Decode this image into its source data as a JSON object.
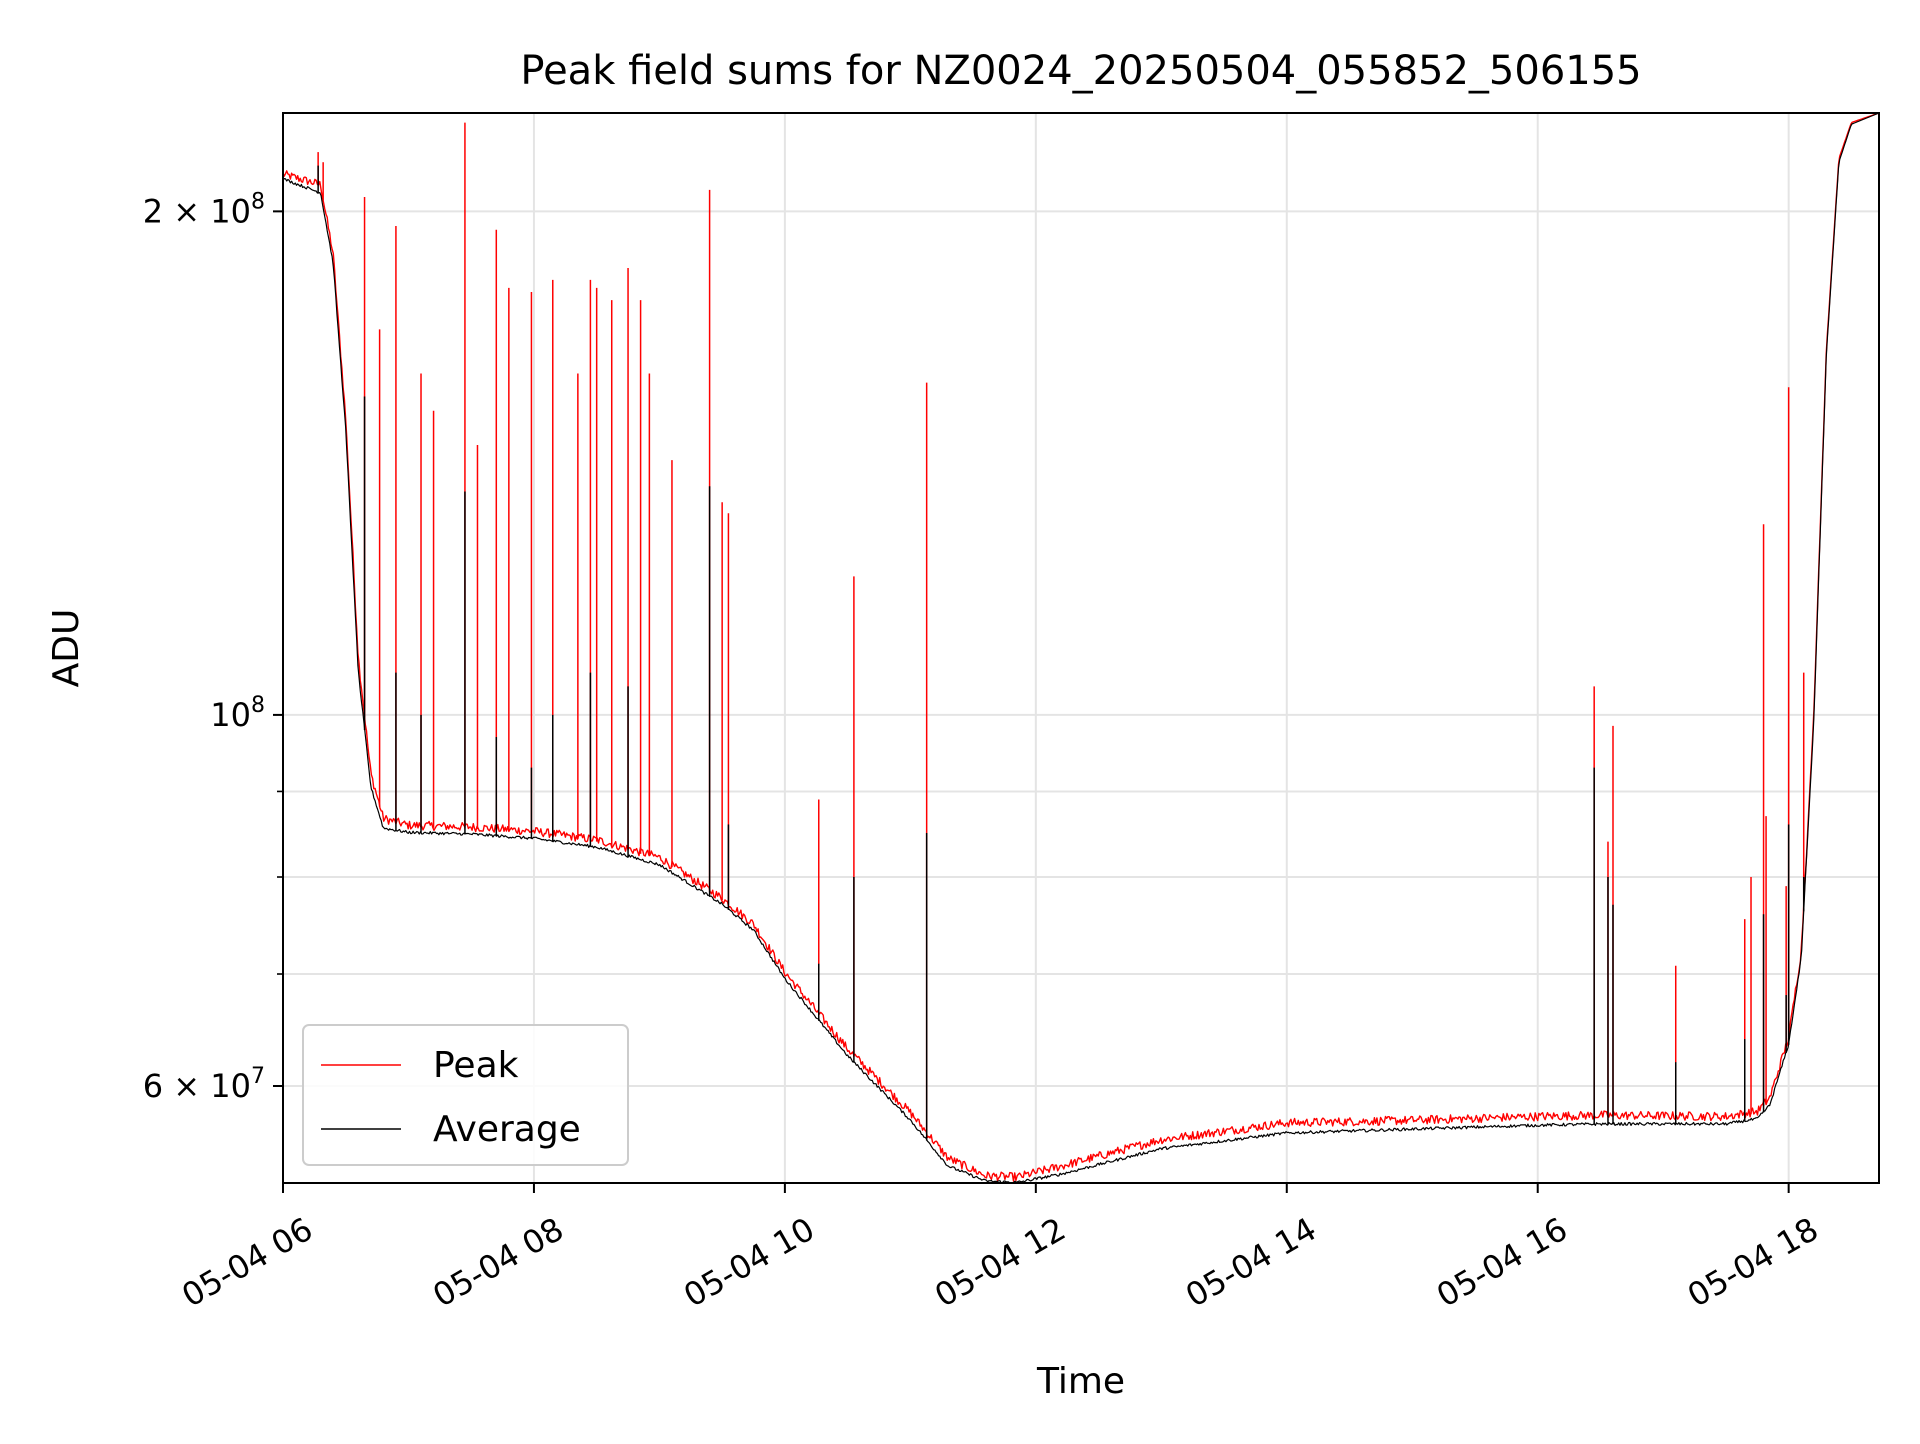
{
  "chart_data": {
    "type": "line",
    "title": "Peak field sums for NZ0024_20250504_055852_506155",
    "xlabel": "Time",
    "ylabel": "ADU",
    "x_unit": "hours (time of day, 2025-05-04)",
    "xlim": [
      6.0,
      18.72
    ],
    "ylim": [
      52500000,
      229000000
    ],
    "yscale": "log",
    "grid": true,
    "legend_position": "lower-left",
    "x_ticks": [
      {
        "value": 6,
        "label": "05-04 06"
      },
      {
        "value": 8,
        "label": "05-04 08"
      },
      {
        "value": 10,
        "label": "05-04 10"
      },
      {
        "value": 12,
        "label": "05-04 12"
      },
      {
        "value": 14,
        "label": "05-04 14"
      },
      {
        "value": 16,
        "label": "05-04 16"
      },
      {
        "value": 18,
        "label": "05-04 18"
      }
    ],
    "y_ticks_major": [
      {
        "value": 60000000,
        "mantissa": "6",
        "exponent": "7"
      },
      {
        "value": 100000000,
        "mantissa": "",
        "exponent": "8"
      },
      {
        "value": 200000000,
        "mantissa": "2",
        "exponent": "8"
      }
    ],
    "y_ticks_minor": [
      70000000,
      80000000,
      90000000
    ],
    "series": [
      {
        "name": "Peak",
        "color": "#ff0000",
        "baseline": [
          [
            6.0,
            210000000
          ],
          [
            6.3,
            207000000
          ],
          [
            6.4,
            188000000
          ],
          [
            6.5,
            150000000
          ],
          [
            6.6,
            108000000
          ],
          [
            6.7,
            92000000
          ],
          [
            6.8,
            86500000
          ],
          [
            7.0,
            85700000
          ],
          [
            7.5,
            85500000
          ],
          [
            8.0,
            85000000
          ],
          [
            8.5,
            84000000
          ],
          [
            9.0,
            82000000
          ],
          [
            9.5,
            77500000
          ],
          [
            9.75,
            74800000
          ],
          [
            10.0,
            70000000
          ],
          [
            10.5,
            63000000
          ],
          [
            11.0,
            57700000
          ],
          [
            11.3,
            54200000
          ],
          [
            11.6,
            52900000
          ],
          [
            11.85,
            52800000
          ],
          [
            12.2,
            53600000
          ],
          [
            13.0,
            55600000
          ],
          [
            14.0,
            56900000
          ],
          [
            15.0,
            57100000
          ],
          [
            16.0,
            57400000
          ],
          [
            16.5,
            57500000
          ],
          [
            17.5,
            57400000
          ],
          [
            17.75,
            57800000
          ],
          [
            17.85,
            58900000
          ],
          [
            18.0,
            64000000
          ],
          [
            18.1,
            72000000
          ],
          [
            18.2,
            100000000
          ],
          [
            18.3,
            165000000
          ],
          [
            18.4,
            215000000
          ],
          [
            18.5,
            226000000
          ],
          [
            18.72,
            229000000
          ]
        ],
        "spikes": [
          [
            6.28,
            217000000
          ],
          [
            6.32,
            214000000
          ],
          [
            6.65,
            204000000
          ],
          [
            6.9,
            196000000
          ],
          [
            6.77,
            170000000
          ],
          [
            7.1,
            160000000
          ],
          [
            7.2,
            152000000
          ],
          [
            7.45,
            226000000
          ],
          [
            7.55,
            145000000
          ],
          [
            7.7,
            195000000
          ],
          [
            7.8,
            180000000
          ],
          [
            7.98,
            179000000
          ],
          [
            8.15,
            182000000
          ],
          [
            8.35,
            160000000
          ],
          [
            8.45,
            182000000
          ],
          [
            8.5,
            180000000
          ],
          [
            8.62,
            177000000
          ],
          [
            8.75,
            185000000
          ],
          [
            8.85,
            177000000
          ],
          [
            8.92,
            160000000
          ],
          [
            9.1,
            142000000
          ],
          [
            9.4,
            206000000
          ],
          [
            9.5,
            134000000
          ],
          [
            9.55,
            132000000
          ],
          [
            10.27,
            89000000
          ],
          [
            10.55,
            121000000
          ],
          [
            11.13,
            158000000
          ],
          [
            16.45,
            104000000
          ],
          [
            16.6,
            98500000
          ],
          [
            16.56,
            84000000
          ],
          [
            17.1,
            70800000
          ],
          [
            17.65,
            75500000
          ],
          [
            17.7,
            80000000
          ],
          [
            17.8,
            130000000
          ],
          [
            17.82,
            87000000
          ],
          [
            17.98,
            79000000
          ],
          [
            18.0,
            157000000
          ],
          [
            18.12,
            106000000
          ]
        ]
      },
      {
        "name": "Average",
        "color": "#000000",
        "baseline": [
          [
            6.0,
            209000000
          ],
          [
            6.3,
            205000000
          ],
          [
            6.4,
            186000000
          ],
          [
            6.5,
            148000000
          ],
          [
            6.6,
            106000000
          ],
          [
            6.7,
            90500000
          ],
          [
            6.8,
            85500000
          ],
          [
            7.0,
            85000000
          ],
          [
            7.5,
            84800000
          ],
          [
            8.0,
            84300000
          ],
          [
            8.5,
            83300000
          ],
          [
            9.0,
            81300000
          ],
          [
            9.5,
            77000000
          ],
          [
            9.75,
            74300000
          ],
          [
            10.0,
            69500000
          ],
          [
            10.5,
            62500000
          ],
          [
            11.0,
            57200000
          ],
          [
            11.3,
            53700000
          ],
          [
            11.6,
            52600000
          ],
          [
            11.85,
            52500000
          ],
          [
            12.2,
            53100000
          ],
          [
            13.0,
            55000000
          ],
          [
            14.0,
            56200000
          ],
          [
            15.0,
            56500000
          ],
          [
            16.0,
            56800000
          ],
          [
            16.5,
            56900000
          ],
          [
            17.5,
            56900000
          ],
          [
            17.75,
            57300000
          ],
          [
            17.85,
            58400000
          ],
          [
            18.0,
            63500000
          ],
          [
            18.1,
            71500000
          ],
          [
            18.2,
            99000000
          ],
          [
            18.3,
            164000000
          ],
          [
            18.4,
            214000000
          ],
          [
            18.5,
            225500000
          ],
          [
            18.72,
            229000000
          ]
        ],
        "spikes": [
          [
            6.28,
            213000000
          ],
          [
            6.65,
            155000000
          ],
          [
            6.9,
            106000000
          ],
          [
            7.1,
            100000000
          ],
          [
            7.45,
            136000000
          ],
          [
            7.7,
            97000000
          ],
          [
            7.98,
            93000000
          ],
          [
            8.15,
            100000000
          ],
          [
            8.45,
            106000000
          ],
          [
            8.75,
            104000000
          ],
          [
            9.4,
            137000000
          ],
          [
            9.55,
            86000000
          ],
          [
            10.27,
            71000000
          ],
          [
            10.55,
            80000000
          ],
          [
            11.13,
            85000000
          ],
          [
            16.45,
            93000000
          ],
          [
            16.56,
            80000000
          ],
          [
            16.6,
            77000000
          ],
          [
            17.1,
            62000000
          ],
          [
            17.65,
            64000000
          ],
          [
            17.8,
            76000000
          ],
          [
            17.98,
            68000000
          ],
          [
            18.0,
            86000000
          ],
          [
            18.12,
            80000000
          ]
        ]
      }
    ]
  }
}
